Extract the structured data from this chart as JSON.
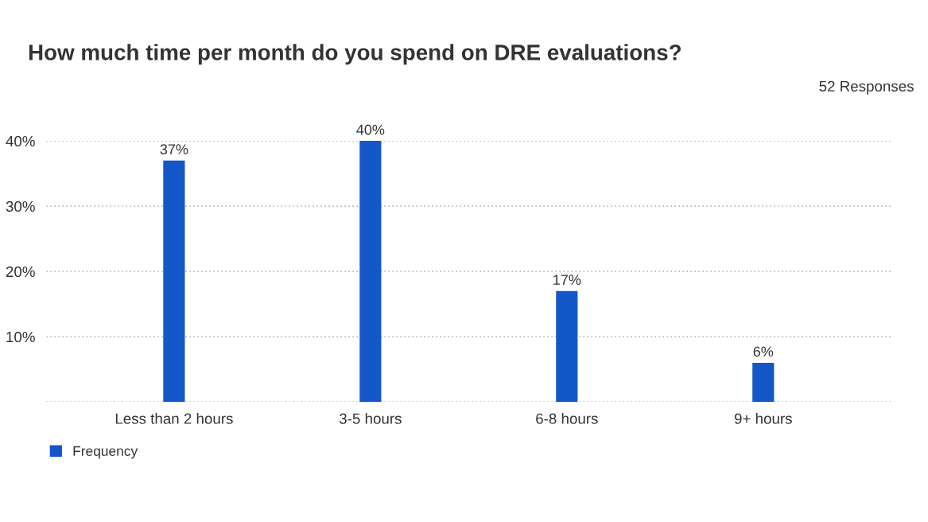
{
  "chart_data": {
    "type": "bar",
    "title": "How much time per month do you spend on DRE evaluations?",
    "annotations": [
      "52 Responses"
    ],
    "categories": [
      "Less than 2 hours",
      "3-5 hours",
      "6-8 hours",
      "9+ hours"
    ],
    "series": [
      {
        "name": "Frequency",
        "color": "#1357c8",
        "values": [
          37,
          40,
          17,
          6
        ],
        "value_labels": [
          "37%",
          "40%",
          "17%",
          "6%"
        ]
      }
    ],
    "ylim": [
      0,
      40
    ],
    "yticks": [
      {
        "value": 0,
        "label": null
      },
      {
        "value": 10,
        "label": "10%"
      },
      {
        "value": 20,
        "label": "20%"
      },
      {
        "value": 30,
        "label": "30%"
      },
      {
        "value": 40,
        "label": "40%"
      }
    ],
    "grid": "y",
    "legend": "bottom left"
  }
}
